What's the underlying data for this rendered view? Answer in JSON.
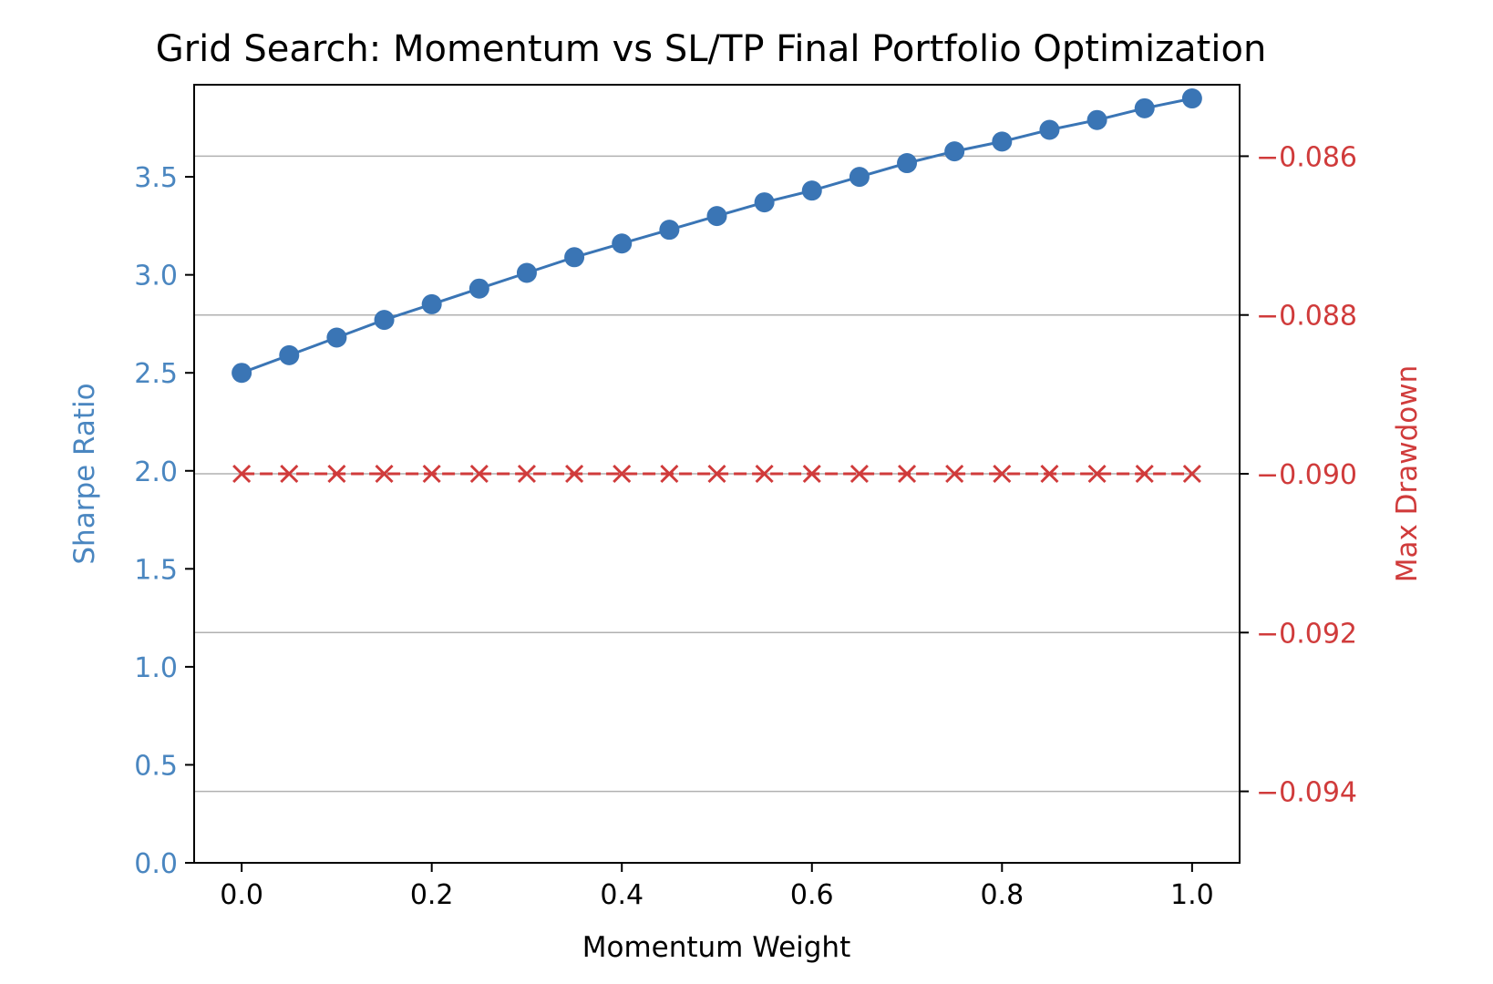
{
  "chart_data": {
    "type": "line",
    "title": "Grid Search: Momentum vs SL/TP Final Portfolio Optimization",
    "xlabel": "Momentum Weight",
    "ylabel_left": "Sharpe Ratio",
    "ylabel_right": "Max Drawdown",
    "xlim": [
      -0.05,
      1.05
    ],
    "ylim_left": [
      0.0,
      3.97
    ],
    "ylim_right": [
      -0.0949,
      -0.0851
    ],
    "x_ticks": [
      "0.0",
      "0.2",
      "0.4",
      "0.6",
      "0.8",
      "1.0"
    ],
    "y_left_ticks": [
      "0.0",
      "0.5",
      "1.0",
      "1.5",
      "2.0",
      "2.5",
      "3.0",
      "3.5"
    ],
    "y_right_ticks": [
      "−0.094",
      "−0.092",
      "−0.090",
      "−0.088",
      "−0.086"
    ],
    "grid": "horizontal, right axis",
    "x": [
      0.0,
      0.05,
      0.1,
      0.15,
      0.2,
      0.25,
      0.3,
      0.35,
      0.4,
      0.45,
      0.5,
      0.55,
      0.6,
      0.65,
      0.7,
      0.75,
      0.8,
      0.85,
      0.9,
      0.95,
      1.0
    ],
    "series": [
      {
        "axis": "left",
        "color": "#3a75b5",
        "marker": "circle",
        "linestyle": "solid",
        "values": [
          2.5,
          2.59,
          2.68,
          2.77,
          2.85,
          2.93,
          3.01,
          3.09,
          3.16,
          3.23,
          3.3,
          3.37,
          3.43,
          3.5,
          3.57,
          3.63,
          3.68,
          3.74,
          3.79,
          3.85,
          3.9
        ]
      },
      {
        "axis": "right",
        "color": "#d03b3b",
        "marker": "x",
        "linestyle": "dashed",
        "values": [
          -0.09,
          -0.09,
          -0.09,
          -0.09,
          -0.09,
          -0.09,
          -0.09,
          -0.09,
          -0.09,
          -0.09,
          -0.09,
          -0.09,
          -0.09,
          -0.09,
          -0.09,
          -0.09,
          -0.09,
          -0.09,
          -0.09,
          -0.09,
          -0.09
        ]
      }
    ],
    "colors": {
      "left_axis": "#4a86c0",
      "right_axis": "#d03b3b",
      "grid": "#b0b0b0",
      "text": "#000000"
    }
  }
}
